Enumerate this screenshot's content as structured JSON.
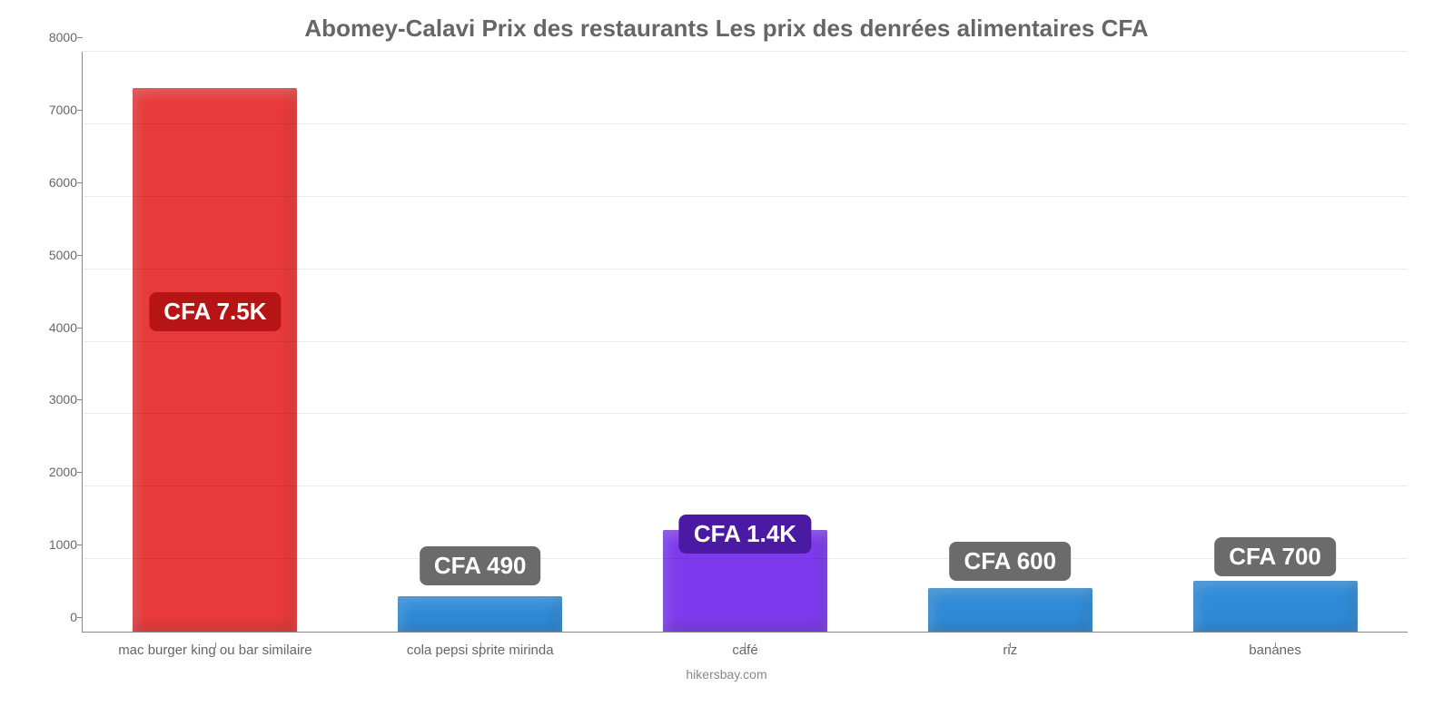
{
  "chart": {
    "type": "bar",
    "title": "Abomey-Calavi Prix des restaurants Les prix des denrées alimentaires CFA",
    "title_color": "#666666",
    "title_fontsize": 26,
    "background_color": "#ffffff",
    "axis_color": "#888888",
    "grid_color": "rgba(0,0,0,0.08)",
    "label_color": "#666666",
    "label_fontsize": 15,
    "ylim": [
      0,
      8000
    ],
    "ytick_step": 1000,
    "yticks": [
      "0",
      "1000",
      "2000",
      "3000",
      "4000",
      "5000",
      "6000",
      "7000",
      "8000"
    ],
    "bar_width": 0.62,
    "bars": [
      {
        "category": "mac burger king ou bar similaire",
        "value": 7500,
        "color": "#e83a3a",
        "label": "CFA 7.5K",
        "badge_color": "#b71515",
        "badge_y": 4150
      },
      {
        "category": "cola pepsi sprite mirinda",
        "value": 490,
        "color": "#2f8bd8",
        "label": "CFA 490",
        "badge_color": "#6b6b6b",
        "badge_y": 640
      },
      {
        "category": "café",
        "value": 1400,
        "color": "#7d3bed",
        "label": "CFA 1.4K",
        "badge_color": "#4b1aa3",
        "badge_y": 1080
      },
      {
        "category": "riz",
        "value": 600,
        "color": "#2f8bd8",
        "label": "CFA 600",
        "badge_color": "#6b6b6b",
        "badge_y": 700
      },
      {
        "category": "bananes",
        "value": 700,
        "color": "#2f8bd8",
        "label": "CFA 700",
        "badge_color": "#6b6b6b",
        "badge_y": 760
      }
    ],
    "footer": "hikersbay.com"
  }
}
